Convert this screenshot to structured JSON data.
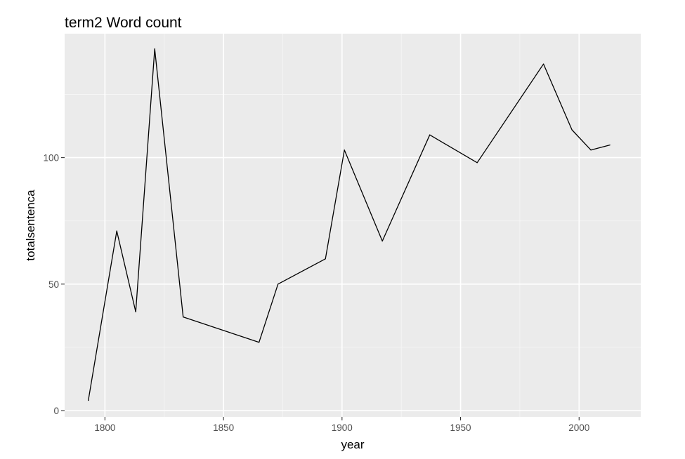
{
  "chart_data": {
    "type": "line",
    "title": "term2 Word count",
    "xlabel": "year",
    "ylabel": "totalsentenca",
    "xlim": [
      1783,
      2026
    ],
    "ylim": [
      -2.5,
      149
    ],
    "x_ticks": [
      1800,
      1850,
      1900,
      1950,
      2000
    ],
    "x_tick_labels": [
      "1800",
      "1850",
      "1900",
      "1950",
      "2000"
    ],
    "x_minor_ticks": [
      1825,
      1875,
      1925,
      1975
    ],
    "y_ticks": [
      0,
      50,
      100
    ],
    "y_tick_labels": [
      "0",
      "50",
      "100"
    ],
    "y_minor_ticks": [
      25,
      75,
      125
    ],
    "grid": true,
    "legend": "none",
    "series": [
      {
        "x": [
          1793,
          1805,
          1813,
          1821,
          1833,
          1865,
          1873,
          1893,
          1901,
          1917,
          1937,
          1957,
          1985,
          1997,
          2005,
          2013
        ],
        "values": [
          4,
          71,
          39,
          143,
          37,
          27,
          50,
          60,
          103,
          67,
          109,
          98,
          137,
          111,
          103,
          105
        ]
      }
    ],
    "colors": {
      "panel_background": "#ebebeb",
      "grid_major": "#ffffff",
      "grid_minor": "#f5f5f5",
      "line": "#000000",
      "tick_text": "#4d4d4d"
    }
  }
}
